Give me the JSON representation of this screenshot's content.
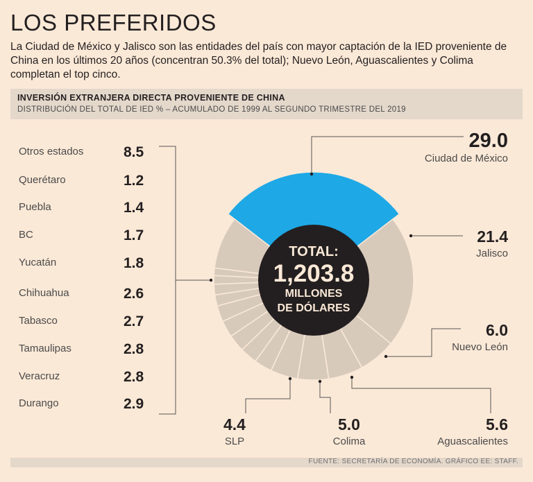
{
  "title": "LOS PREFERIDOS",
  "intro": "La Ciudad de México y Jalisco son las entidades del país con mayor captación de la IED proveniente de China en los últimos 20 años (concentran 50.3% del total); Nuevo León, Aguascalientes y Colima completan el top cinco.",
  "header": {
    "line1": "INVERSIÓN EXTRANJERA DIRECTA PROVENIENTE DE CHINA",
    "line2": "DISTRIBUCIÓN DEL TOTAL DE IED % – ACUMULADO DE 1999 AL SEGUNDO TRIMESTRE DEL 2019"
  },
  "center": {
    "label": "TOTAL:",
    "value": "1,203.8",
    "unit1": "MILLONES",
    "unit2": "DE DÓLARES"
  },
  "footer": "FUENTE: SECRETARÍA DE ECONOMÍA. GRÁFICO EE: STAFF.",
  "colors": {
    "highlight": "#1ea8e6",
    "segment": "#d8cabb",
    "center": "#231f20",
    "background": "#fbe9d7"
  },
  "chart_data": {
    "type": "pie",
    "title": "INVERSIÓN EXTRANJERA DIRECTA PROVENIENTE DE CHINA",
    "subtitle": "DISTRIBUCIÓN DEL TOTAL DE IED % – ACUMULADO DE 1999 AL SEGUNDO TRIMESTRE DEL 2019",
    "unit": "%",
    "slices": [
      {
        "name": "Ciudad de México",
        "label": "29.0",
        "value": 29.0
      },
      {
        "name": "Jalisco",
        "label": "21.4",
        "value": 21.4
      },
      {
        "name": "Nuevo León",
        "label": "6.0",
        "value": 6.0
      },
      {
        "name": "Aguascalientes",
        "label": "5.6",
        "value": 5.6
      },
      {
        "name": "Colima",
        "label": "5.0",
        "value": 5.0
      },
      {
        "name": "SLP",
        "label": "4.4",
        "value": 4.4
      },
      {
        "name": "Durango",
        "label": "2.9",
        "value": 2.9
      },
      {
        "name": "Veracruz",
        "label": "2.8",
        "value": 2.8
      },
      {
        "name": "Tamaulipas",
        "label": "2.8",
        "value": 2.8
      },
      {
        "name": "Tabasco",
        "label": "2.7",
        "value": 2.7
      },
      {
        "name": "Chihuahua",
        "label": "2.6",
        "value": 2.6
      },
      {
        "name": "Yucatán",
        "label": "1.8",
        "value": 1.8
      },
      {
        "name": "BC",
        "label": "1.7",
        "value": 1.7
      },
      {
        "name": "Puebla",
        "label": "1.4",
        "value": 1.4
      },
      {
        "name": "Querétaro",
        "label": "1.2",
        "value": 1.2
      },
      {
        "name": "Otros estados",
        "label": "8.5",
        "value": 8.5
      }
    ]
  },
  "left_list": [
    {
      "name": "Otros estados",
      "value": "8.5"
    },
    {
      "name": "Querétaro",
      "value": "1.2"
    },
    {
      "name": "Puebla",
      "value": "1.4"
    },
    {
      "name": "BC",
      "value": "1.7"
    },
    {
      "name": "Yucatán",
      "value": "1.8"
    },
    {
      "name": "Chihuahua",
      "value": "2.6"
    },
    {
      "name": "Tabasco",
      "value": "2.7"
    },
    {
      "name": "Tamaulipas",
      "value": "2.8"
    },
    {
      "name": "Veracruz",
      "value": "2.8"
    },
    {
      "name": "Durango",
      "value": "2.9"
    }
  ]
}
